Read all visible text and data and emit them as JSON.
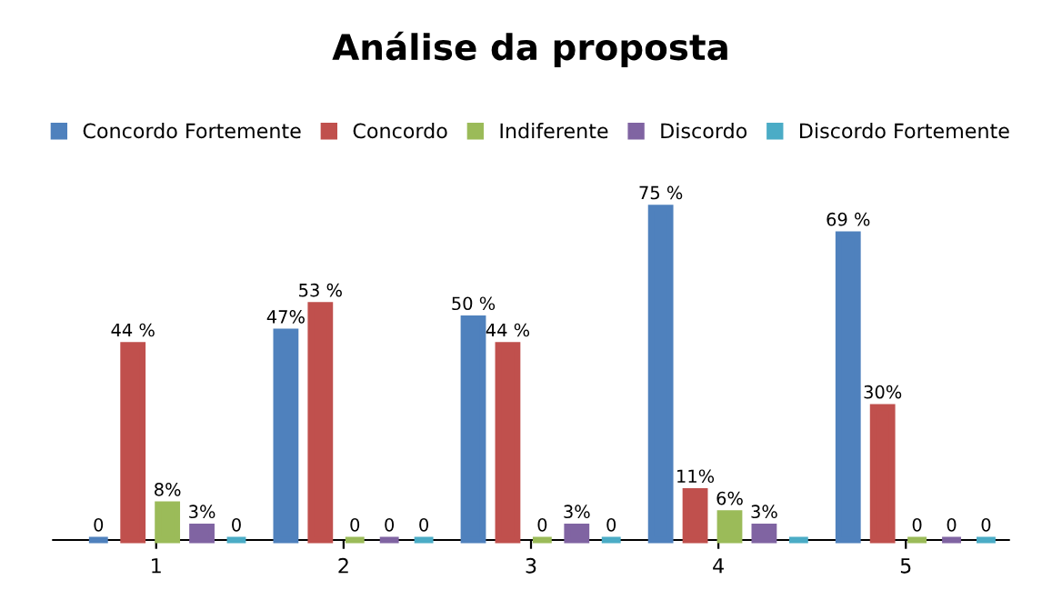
{
  "chart_data": {
    "type": "bar",
    "title": "Análise da proposta",
    "categories": [
      "1",
      "2",
      "3",
      "4",
      "5"
    ],
    "series": [
      {
        "name": "Concordo Fortemente",
        "color": "#4f81bd",
        "values": [
          0,
          47,
          50,
          75,
          69
        ],
        "value_labels": [
          "0",
          "47%",
          "50 %",
          "75 %",
          "69 %"
        ]
      },
      {
        "name": "Concordo",
        "color": "#c0504d",
        "values": [
          44,
          53,
          44,
          11,
          30
        ],
        "value_labels": [
          "44 %",
          "53 %",
          "44 %",
          "11%",
          "30%"
        ]
      },
      {
        "name": "Indiferente",
        "color": "#9bbb59",
        "values": [
          8,
          0,
          0,
          6,
          0
        ],
        "value_labels": [
          "8%",
          "0",
          "0",
          "6%",
          "0"
        ]
      },
      {
        "name": "Discordo",
        "color": "#8064a2",
        "values": [
          3,
          0,
          3,
          3,
          0
        ],
        "value_labels": [
          "3%",
          "0",
          "3%",
          "3%",
          "0"
        ]
      },
      {
        "name": "Discordo Fortemente",
        "color": "#4bacc6",
        "values": [
          0,
          0,
          0,
          0,
          0
        ],
        "value_labels": [
          "0",
          "0",
          "0",
          null,
          "0"
        ]
      }
    ],
    "legend": "top",
    "grid": false,
    "tick_labels": "x"
  }
}
